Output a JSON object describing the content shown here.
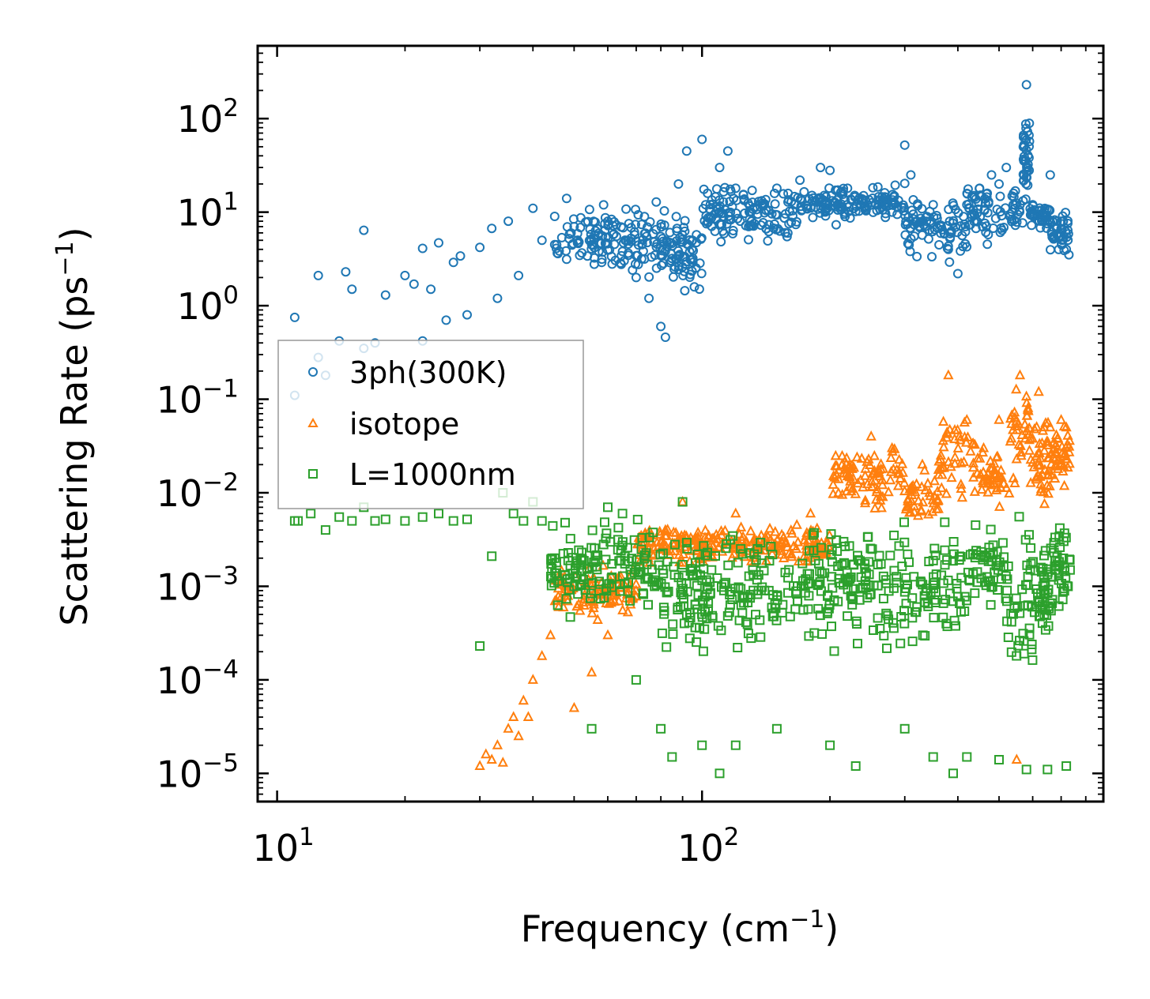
{
  "chart_data": {
    "type": "scatter",
    "title": "",
    "xlabel": "Frequency (cm",
    "xlabel_sup": "−1",
    "xlabel_end": ")",
    "ylabel": "Scattering Rate (ps",
    "ylabel_sup": "−1",
    "ylabel_end": ")",
    "xscale": "log",
    "yscale": "log",
    "xlim": [
      9,
      880
    ],
    "ylim": [
      5e-06,
      600
    ],
    "x_ticks": [
      {
        "value": 10,
        "base": "10",
        "exp": "1"
      },
      {
        "value": 100,
        "base": "10",
        "exp": "2"
      }
    ],
    "y_ticks": [
      {
        "value": 100,
        "base": "10",
        "exp": "2"
      },
      {
        "value": 10,
        "base": "10",
        "exp": "1"
      },
      {
        "value": 1,
        "base": "10",
        "exp": "0"
      },
      {
        "value": 0.1,
        "base": "10",
        "exp": "−1"
      },
      {
        "value": 0.01,
        "base": "10",
        "exp": "−2"
      },
      {
        "value": 0.001,
        "base": "10",
        "exp": "−3"
      },
      {
        "value": 0.0001,
        "base": "10",
        "exp": "−4"
      },
      {
        "value": 1e-05,
        "base": "10",
        "exp": "−5"
      }
    ],
    "legend_position": "center-left",
    "series": [
      {
        "name": "3ph(300K)",
        "marker": "circle",
        "color": "#1f77b4",
        "points": [
          [
            11,
            0.75
          ],
          [
            11,
            0.11
          ],
          [
            12.5,
            2.1
          ],
          [
            12.5,
            0.28
          ],
          [
            13,
            0.18
          ],
          [
            14,
            0.42
          ],
          [
            14.5,
            2.3
          ],
          [
            15,
            1.5
          ],
          [
            16,
            6.4
          ],
          [
            16,
            0.35
          ],
          [
            17,
            0.4
          ],
          [
            18,
            1.3
          ],
          [
            20,
            2.1
          ],
          [
            21,
            1.7
          ],
          [
            22,
            0.42
          ],
          [
            22,
            4.1
          ],
          [
            23,
            1.5
          ],
          [
            24,
            4.7
          ],
          [
            25,
            0.7
          ],
          [
            26,
            2.9
          ],
          [
            27,
            3.4
          ],
          [
            28,
            0.8
          ],
          [
            30,
            4.2
          ],
          [
            32,
            6.7
          ],
          [
            33,
            1.2
          ],
          [
            35,
            8.0
          ],
          [
            37,
            2.1
          ],
          [
            40,
            11
          ],
          [
            42,
            5.0
          ],
          [
            45,
            9.0
          ],
          [
            48,
            14
          ],
          [
            50,
            7.0
          ],
          [
            55,
            4.5
          ],
          [
            60,
            8.0
          ],
          [
            65,
            3.8
          ],
          [
            70,
            2.0
          ],
          [
            75,
            1.2
          ],
          [
            80,
            0.6
          ],
          [
            82,
            0.46
          ],
          [
            85,
            3.2
          ],
          [
            88,
            20
          ],
          [
            92,
            45
          ],
          [
            95,
            5.0
          ],
          [
            100,
            60
          ],
          [
            102,
            12
          ],
          [
            110,
            30
          ],
          [
            115,
            45
          ],
          [
            120,
            18
          ],
          [
            130,
            10
          ],
          [
            140,
            12
          ],
          [
            150,
            18
          ],
          [
            170,
            22
          ],
          [
            190,
            30
          ],
          [
            200,
            28
          ],
          [
            220,
            18
          ],
          [
            240,
            15
          ],
          [
            260,
            12
          ],
          [
            280,
            10
          ],
          [
            300,
            52
          ],
          [
            310,
            25
          ],
          [
            330,
            8
          ],
          [
            350,
            12
          ],
          [
            380,
            4
          ],
          [
            400,
            2.2
          ],
          [
            420,
            12
          ],
          [
            450,
            18
          ],
          [
            480,
            25
          ],
          [
            500,
            20
          ],
          [
            520,
            30
          ],
          [
            540,
            12
          ],
          [
            560,
            12
          ],
          [
            580,
            230
          ],
          [
            600,
            12
          ],
          [
            630,
            8
          ],
          [
            660,
            25
          ],
          [
            700,
            8
          ],
          [
            720,
            4
          ],
          [
            730,
            3.5
          ]
        ],
        "bands": [
          [
            45,
            90,
            1.5,
            15
          ],
          [
            88,
            100,
            0.9,
            12
          ],
          [
            100,
            170,
            4,
            25
          ],
          [
            170,
            300,
            7,
            22
          ],
          [
            300,
            420,
            2.5,
            18
          ],
          [
            420,
            570,
            4,
            25
          ],
          [
            570,
            590,
            10,
            180
          ],
          [
            590,
            660,
            6,
            14
          ],
          [
            660,
            735,
            3.2,
            12
          ]
        ]
      },
      {
        "name": "isotope",
        "marker": "triangle",
        "color": "#ff7f0e",
        "points": [
          [
            30,
            1.2e-05
          ],
          [
            31,
            1.6e-05
          ],
          [
            32,
            1.4e-05
          ],
          [
            33,
            2e-05
          ],
          [
            34,
            1.3e-05
          ],
          [
            35,
            3e-05
          ],
          [
            36,
            4e-05
          ],
          [
            37,
            2.5e-05
          ],
          [
            38,
            6e-05
          ],
          [
            39,
            4e-05
          ],
          [
            40,
            0.0001
          ],
          [
            42,
            0.00018
          ],
          [
            44,
            0.0003
          ],
          [
            46,
            0.0006
          ],
          [
            48,
            0.001
          ],
          [
            50,
            5e-05
          ],
          [
            55,
            0.00012
          ],
          [
            60,
            0.0003
          ],
          [
            80,
            0.003
          ],
          [
            90,
            0.008
          ],
          [
            120,
            0.006
          ],
          [
            180,
            0.006
          ],
          [
            220,
            0.015
          ],
          [
            250,
            0.04
          ],
          [
            280,
            0.03
          ],
          [
            330,
            0.02
          ],
          [
            380,
            0.18
          ],
          [
            420,
            0.06
          ],
          [
            460,
            0.03
          ],
          [
            500,
            0.06
          ],
          [
            560,
            0.18
          ],
          [
            620,
            0.12
          ],
          [
            660,
            0.05
          ],
          [
            700,
            0.06
          ],
          [
            720,
            0.05
          ],
          [
            550,
            1.4e-05
          ]
        ],
        "bands": [
          [
            45,
            70,
            0.0004,
            0.002
          ],
          [
            70,
            200,
            0.0015,
            0.005
          ],
          [
            200,
            300,
            0.005,
            0.04
          ],
          [
            300,
            360,
            0.004,
            0.02
          ],
          [
            360,
            440,
            0.006,
            0.1
          ],
          [
            440,
            530,
            0.005,
            0.04
          ],
          [
            530,
            600,
            0.01,
            0.2
          ],
          [
            600,
            660,
            0.005,
            0.1
          ],
          [
            660,
            735,
            0.01,
            0.06
          ]
        ]
      },
      {
        "name": "L=1000nm",
        "marker": "square",
        "color": "#2ca02c",
        "points": [
          [
            11,
            0.005
          ],
          [
            11.2,
            0.005
          ],
          [
            12,
            0.006
          ],
          [
            13,
            0.004
          ],
          [
            14,
            0.0055
          ],
          [
            15,
            0.005
          ],
          [
            16,
            0.007
          ],
          [
            17,
            0.005
          ],
          [
            18,
            0.0052
          ],
          [
            20,
            0.005
          ],
          [
            22,
            0.0055
          ],
          [
            24,
            0.006
          ],
          [
            26,
            0.005
          ],
          [
            28,
            0.0052
          ],
          [
            30,
            0.00023
          ],
          [
            32,
            0.0021
          ],
          [
            34,
            0.01
          ],
          [
            36,
            0.006
          ],
          [
            38,
            0.005
          ],
          [
            40,
            0.008
          ],
          [
            42,
            0.005
          ],
          [
            45,
            0.002
          ],
          [
            50,
            0.001
          ],
          [
            55,
            3e-05
          ],
          [
            60,
            0.007
          ],
          [
            65,
            0.006
          ],
          [
            70,
            0.0001
          ],
          [
            80,
            3e-05
          ],
          [
            85,
            1.5e-05
          ],
          [
            90,
            0.008
          ],
          [
            100,
            2e-05
          ],
          [
            110,
            1e-05
          ],
          [
            120,
            2e-05
          ],
          [
            150,
            3e-05
          ],
          [
            200,
            2e-05
          ],
          [
            230,
            1.2e-05
          ],
          [
            300,
            3e-05
          ],
          [
            350,
            1.5e-05
          ],
          [
            390,
            1e-05
          ],
          [
            420,
            1.5e-05
          ],
          [
            500,
            1.4e-05
          ],
          [
            580,
            1.1e-05
          ],
          [
            650,
            1.1e-05
          ],
          [
            720,
            1.2e-05
          ]
        ],
        "bands": [
          [
            44,
            80,
            0.0004,
            0.006
          ],
          [
            80,
            200,
            0.00015,
            0.006
          ],
          [
            200,
            420,
            0.00015,
            0.006
          ],
          [
            420,
            520,
            0.0004,
            0.006
          ],
          [
            520,
            600,
            6e-05,
            0.008
          ],
          [
            600,
            660,
            0.0002,
            0.003
          ],
          [
            660,
            735,
            0.0003,
            0.008
          ]
        ]
      }
    ]
  }
}
